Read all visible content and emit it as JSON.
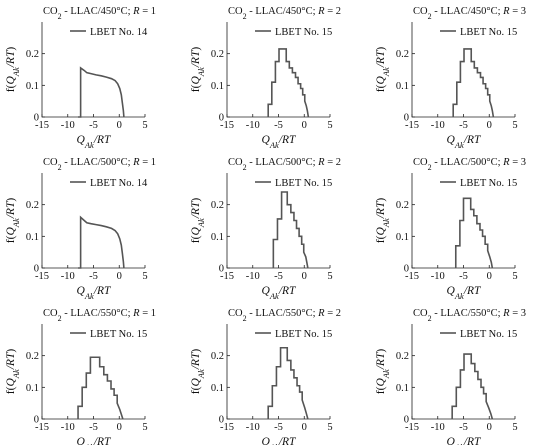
{
  "chart_data": [
    {
      "type": "line",
      "title": "CO₂ - LLAC/450°C; R = 1",
      "xlabel": "Q_Ak/RT",
      "ylabel": "f(Q_Ak/RT)",
      "xlim": [
        -15,
        5
      ],
      "ylim": [
        0,
        0.3
      ],
      "xticks": [
        "-15",
        "-10",
        "-5",
        "0",
        "5"
      ],
      "yticks": [
        "0",
        "0.1",
        "0.2"
      ],
      "legend": "LBET No. 14",
      "legend_position": "top-right",
      "series": [
        {
          "x": [
            -8,
            -7.5,
            -7.5,
            -6.8,
            -6.3,
            -5.5,
            -4.5,
            -3.5,
            -2.5,
            -1.5,
            -0.8,
            -0.3,
            0.1,
            0.4,
            0.6,
            0.8,
            0.9
          ],
          "y": [
            0,
            0,
            0.155,
            0.147,
            0.14,
            0.137,
            0.133,
            0.13,
            0.126,
            0.121,
            0.115,
            0.105,
            0.09,
            0.07,
            0.045,
            0.02,
            0
          ]
        }
      ]
    },
    {
      "type": "line",
      "title": "CO₂ - LLAC/450°C; R = 2",
      "xlabel": "Q_Ak/RT",
      "ylabel": "f(Q_Ak/RT)",
      "xlim": [
        -15,
        5
      ],
      "ylim": [
        0,
        0.3
      ],
      "xticks": [
        "-15",
        "-10",
        "-5",
        "0",
        "5"
      ],
      "yticks": [
        "0",
        "0.1",
        "0.2"
      ],
      "legend": "LBET No. 15",
      "legend_position": "top-right",
      "series": [
        {
          "x": [
            -7,
            -7,
            -6.3,
            -6.3,
            -5.6,
            -5.6,
            -4.9,
            -4.9,
            -3.5,
            -3.5,
            -2.9,
            -2.9,
            -2.3,
            -2.3,
            -1.7,
            -1.7,
            -1.2,
            -1.2,
            -0.7,
            -0.7,
            -0.3,
            -0.3,
            0.1,
            0.1,
            0.4,
            0.6,
            0.8
          ],
          "y": [
            0,
            0.04,
            0.04,
            0.11,
            0.11,
            0.175,
            0.175,
            0.215,
            0.215,
            0.175,
            0.175,
            0.155,
            0.155,
            0.14,
            0.14,
            0.125,
            0.125,
            0.105,
            0.105,
            0.09,
            0.09,
            0.07,
            0.07,
            0.05,
            0.035,
            0.02,
            0
          ]
        }
      ]
    },
    {
      "type": "line",
      "title": "CO₂ - LLAC/450°C; R = 3",
      "xlabel": "Q_Ak/RT",
      "ylabel": "f(Q_Ak/RT)",
      "xlim": [
        -15,
        5
      ],
      "ylim": [
        0,
        0.3
      ],
      "xticks": [
        "-15",
        "-10",
        "-5",
        "0",
        "5"
      ],
      "yticks": [
        "0",
        "0.1",
        "0.2"
      ],
      "legend": "LBET No. 15",
      "legend_position": "top-right",
      "series": [
        {
          "x": [
            -7,
            -7,
            -6.3,
            -6.3,
            -5.6,
            -5.6,
            -4.9,
            -4.9,
            -3.5,
            -3.5,
            -2.9,
            -2.9,
            -2.3,
            -2.3,
            -1.7,
            -1.7,
            -1.2,
            -1.2,
            -0.7,
            -0.7,
            -0.3,
            -0.3,
            0.1,
            0.1,
            0.4,
            0.6,
            0.8
          ],
          "y": [
            0,
            0.04,
            0.04,
            0.11,
            0.11,
            0.175,
            0.175,
            0.215,
            0.215,
            0.175,
            0.175,
            0.155,
            0.155,
            0.14,
            0.14,
            0.125,
            0.125,
            0.105,
            0.105,
            0.09,
            0.09,
            0.07,
            0.07,
            0.05,
            0.035,
            0.02,
            0
          ]
        }
      ]
    },
    {
      "type": "line",
      "title": "CO₂ - LLAC/500°C; R = 1",
      "xlabel": "Q_Ak/RT",
      "ylabel": "f(Q_Ak/RT)",
      "xlim": [
        -15,
        5
      ],
      "ylim": [
        0,
        0.3
      ],
      "xticks": [
        "-15",
        "-10",
        "-5",
        "0",
        "5"
      ],
      "yticks": [
        "0",
        "0.1",
        "0.2"
      ],
      "legend": "LBET No. 14",
      "legend_position": "top-right",
      "series": [
        {
          "x": [
            -8,
            -7.5,
            -7.5,
            -6.8,
            -6.3,
            -5.5,
            -4.5,
            -3.5,
            -2.5,
            -1.5,
            -0.8,
            -0.3,
            0.1,
            0.4,
            0.6,
            0.8,
            0.9
          ],
          "y": [
            0,
            0,
            0.16,
            0.15,
            0.143,
            0.14,
            0.137,
            0.134,
            0.13,
            0.125,
            0.118,
            0.108,
            0.092,
            0.072,
            0.047,
            0.02,
            0
          ]
        }
      ]
    },
    {
      "type": "line",
      "title": "CO₂ - LLAC/500°C; R = 2",
      "xlabel": "Q_Ak/RT",
      "ylabel": "f(Q_Ak/RT)",
      "xlim": [
        -15,
        5
      ],
      "ylim": [
        0,
        0.3
      ],
      "xticks": [
        "-15",
        "-10",
        "-5",
        "0",
        "5"
      ],
      "yticks": [
        "0",
        "0.1",
        "0.2"
      ],
      "legend": "LBET No. 15",
      "legend_position": "top-right",
      "series": [
        {
          "x": [
            -6,
            -6,
            -5.2,
            -5.2,
            -4.4,
            -4.4,
            -3.3,
            -3.3,
            -2.6,
            -2.6,
            -2.0,
            -2.0,
            -1.5,
            -1.5,
            -1.0,
            -1.0,
            -0.5,
            -0.5,
            -0.1,
            -0.1,
            0.3,
            0.5,
            0.7
          ],
          "y": [
            0,
            0.09,
            0.09,
            0.155,
            0.155,
            0.24,
            0.24,
            0.2,
            0.2,
            0.175,
            0.175,
            0.15,
            0.15,
            0.125,
            0.125,
            0.1,
            0.1,
            0.075,
            0.075,
            0.05,
            0.035,
            0.018,
            0
          ]
        }
      ]
    },
    {
      "type": "line",
      "title": "CO₂ - LLAC/500°C; R = 3",
      "xlabel": "Q_Ak/RT",
      "ylabel": "f(Q_Ak/RT)",
      "xlim": [
        -15,
        5
      ],
      "ylim": [
        0,
        0.3
      ],
      "xticks": [
        "-15",
        "-10",
        "-5",
        "0",
        "5"
      ],
      "yticks": [
        "0",
        "0.1",
        "0.2"
      ],
      "legend": "LBET No. 15",
      "legend_position": "top-right",
      "series": [
        {
          "x": [
            -6.5,
            -6.5,
            -5.7,
            -5.7,
            -5.0,
            -5.0,
            -3.6,
            -3.6,
            -3.0,
            -3.0,
            -2.4,
            -2.4,
            -1.8,
            -1.8,
            -1.3,
            -1.3,
            -0.8,
            -0.8,
            -0.3,
            -0.3,
            0.1,
            0.4,
            0.6
          ],
          "y": [
            0,
            0.07,
            0.07,
            0.15,
            0.15,
            0.22,
            0.22,
            0.185,
            0.185,
            0.165,
            0.165,
            0.14,
            0.14,
            0.12,
            0.12,
            0.1,
            0.1,
            0.075,
            0.075,
            0.055,
            0.035,
            0.018,
            0
          ]
        }
      ]
    },
    {
      "type": "line",
      "title": "CO₂ - LLAC/550°C; R = 1",
      "xlabel": "Q_Ak/RT",
      "ylabel": "f(Q_Ak/RT)",
      "xlim": [
        -15,
        5
      ],
      "ylim": [
        0,
        0.3
      ],
      "xticks": [
        "-15",
        "-10",
        "-5",
        "0",
        "5"
      ],
      "yticks": [
        "0",
        "0.1",
        "0.2"
      ],
      "legend": "LBET No. 15",
      "legend_position": "top-right",
      "series": [
        {
          "x": [
            -8,
            -8,
            -7.2,
            -7.2,
            -6.4,
            -6.4,
            -5.6,
            -5.6,
            -3.8,
            -3.8,
            -3.0,
            -3.0,
            -2.3,
            -2.3,
            -1.6,
            -1.6,
            -1.0,
            -1.0,
            -0.4,
            -0.4,
            0.1,
            0.4,
            0.7
          ],
          "y": [
            0,
            0.04,
            0.04,
            0.1,
            0.1,
            0.145,
            0.145,
            0.195,
            0.195,
            0.165,
            0.165,
            0.14,
            0.14,
            0.12,
            0.12,
            0.095,
            0.095,
            0.075,
            0.075,
            0.05,
            0.03,
            0.015,
            0
          ]
        }
      ]
    },
    {
      "type": "line",
      "title": "CO₂ - LLAC/550°C; R = 2",
      "xlabel": "Q_Ak/RT",
      "ylabel": "f(Q_Ak/RT)",
      "xlim": [
        -15,
        5
      ],
      "ylim": [
        0,
        0.3
      ],
      "xticks": [
        "-15",
        "-10",
        "-5",
        "0",
        "5"
      ],
      "yticks": [
        "0",
        "0.1",
        "0.2"
      ],
      "legend": "LBET No. 15",
      "legend_position": "top-right",
      "series": [
        {
          "x": [
            -7,
            -7,
            -6.2,
            -6.2,
            -5.4,
            -5.4,
            -4.6,
            -4.6,
            -3.3,
            -3.3,
            -2.6,
            -2.6,
            -2.0,
            -2.0,
            -1.4,
            -1.4,
            -0.9,
            -0.9,
            -0.4,
            -0.4,
            0.1,
            0.4,
            0.7
          ],
          "y": [
            0,
            0.04,
            0.04,
            0.105,
            0.105,
            0.165,
            0.165,
            0.225,
            0.225,
            0.185,
            0.185,
            0.155,
            0.155,
            0.13,
            0.13,
            0.105,
            0.105,
            0.085,
            0.085,
            0.06,
            0.035,
            0.018,
            0
          ]
        }
      ]
    },
    {
      "type": "line",
      "title": "CO₂ - LLAC/550°C; R = 3",
      "xlabel": "Q_Ak/RT",
      "ylabel": "f(Q_Ak/RT)",
      "xlim": [
        -15,
        5
      ],
      "ylim": [
        0,
        0.3
      ],
      "xticks": [
        "-15",
        "-10",
        "-5",
        "0",
        "5"
      ],
      "yticks": [
        "0",
        "0.1",
        "0.2"
      ],
      "legend": "LBET No. 15",
      "legend_position": "top-right",
      "series": [
        {
          "x": [
            -7.2,
            -7.2,
            -6.4,
            -6.4,
            -5.6,
            -5.6,
            -4.9,
            -4.9,
            -3.5,
            -3.5,
            -2.8,
            -2.8,
            -2.2,
            -2.2,
            -1.6,
            -1.6,
            -1.1,
            -1.1,
            -0.6,
            -0.6,
            -0.1,
            0.3,
            0.6
          ],
          "y": [
            0,
            0.04,
            0.04,
            0.1,
            0.1,
            0.155,
            0.155,
            0.205,
            0.205,
            0.175,
            0.175,
            0.15,
            0.15,
            0.125,
            0.125,
            0.1,
            0.1,
            0.08,
            0.08,
            0.055,
            0.035,
            0.017,
            0
          ]
        }
      ]
    }
  ]
}
